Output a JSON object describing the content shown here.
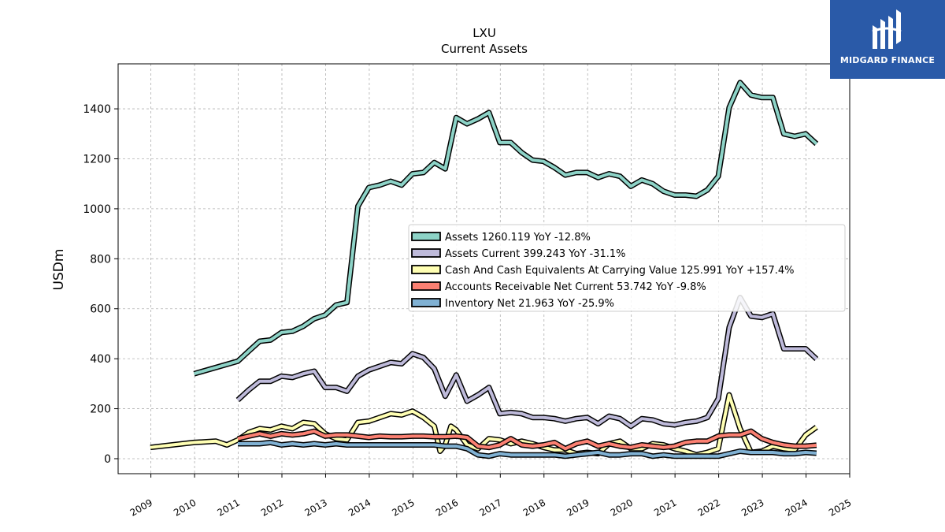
{
  "brand": {
    "name": "MIDGARD FINANCE",
    "color": "#2a5aa8"
  },
  "chart_data": {
    "type": "line",
    "title": "LXU",
    "subtitle": "Current  Assets",
    "xlabel": "",
    "ylabel": "USDm",
    "xlim": [
      2008.25,
      2025.0
    ],
    "ylim": [
      -60,
      1580
    ],
    "xticks": [
      2009,
      2010,
      2011,
      2012,
      2013,
      2014,
      2015,
      2016,
      2017,
      2018,
      2019,
      2020,
      2021,
      2022,
      2023,
      2024,
      2025
    ],
    "yticks": [
      0,
      200,
      400,
      600,
      800,
      1000,
      1200,
      1400
    ],
    "grid": true,
    "legend_position": "center-right",
    "series": [
      {
        "name": "Assets",
        "legend": "Assets  1260.119 YoY -12.8%",
        "color": "#8dd3c7",
        "points": [
          [
            2009.99,
            340
          ],
          [
            2010.99,
            390
          ],
          [
            2011.24,
            430
          ],
          [
            2011.49,
            470
          ],
          [
            2011.74,
            475
          ],
          [
            2011.99,
            505
          ],
          [
            2012.24,
            510
          ],
          [
            2012.49,
            530
          ],
          [
            2012.74,
            560
          ],
          [
            2012.99,
            575
          ],
          [
            2013.24,
            615
          ],
          [
            2013.49,
            625
          ],
          [
            2013.74,
            1010
          ],
          [
            2013.99,
            1085
          ],
          [
            2014.24,
            1095
          ],
          [
            2014.49,
            1110
          ],
          [
            2014.74,
            1095
          ],
          [
            2014.99,
            1140
          ],
          [
            2015.24,
            1145
          ],
          [
            2015.49,
            1185
          ],
          [
            2015.74,
            1160
          ],
          [
            2015.99,
            1365
          ],
          [
            2016.24,
            1340
          ],
          [
            2016.49,
            1360
          ],
          [
            2016.74,
            1385
          ],
          [
            2016.99,
            1265
          ],
          [
            2017.24,
            1265
          ],
          [
            2017.49,
            1225
          ],
          [
            2017.74,
            1195
          ],
          [
            2017.99,
            1190
          ],
          [
            2018.24,
            1165
          ],
          [
            2018.49,
            1135
          ],
          [
            2018.74,
            1145
          ],
          [
            2018.99,
            1145
          ],
          [
            2019.24,
            1125
          ],
          [
            2019.49,
            1140
          ],
          [
            2019.74,
            1130
          ],
          [
            2019.99,
            1090
          ],
          [
            2020.24,
            1115
          ],
          [
            2020.49,
            1100
          ],
          [
            2020.74,
            1070
          ],
          [
            2020.99,
            1055
          ],
          [
            2021.24,
            1055
          ],
          [
            2021.49,
            1050
          ],
          [
            2021.74,
            1075
          ],
          [
            2021.99,
            1130
          ],
          [
            2022.24,
            1405
          ],
          [
            2022.49,
            1505
          ],
          [
            2022.74,
            1455
          ],
          [
            2022.99,
            1445
          ],
          [
            2023.24,
            1445
          ],
          [
            2023.49,
            1300
          ],
          [
            2023.74,
            1290
          ],
          [
            2023.99,
            1300
          ],
          [
            2024.24,
            1260
          ]
        ]
      },
      {
        "name": "Assets Current",
        "legend": "Assets Current  399.243 YoY -31.1%",
        "color": "#bebada",
        "points": [
          [
            2010.99,
            235
          ],
          [
            2011.24,
            275
          ],
          [
            2011.49,
            310
          ],
          [
            2011.74,
            310
          ],
          [
            2011.99,
            330
          ],
          [
            2012.24,
            325
          ],
          [
            2012.49,
            340
          ],
          [
            2012.74,
            350
          ],
          [
            2012.99,
            285
          ],
          [
            2013.24,
            285
          ],
          [
            2013.49,
            270
          ],
          [
            2013.74,
            330
          ],
          [
            2013.99,
            355
          ],
          [
            2014.24,
            370
          ],
          [
            2014.49,
            385
          ],
          [
            2014.74,
            380
          ],
          [
            2014.99,
            420
          ],
          [
            2015.24,
            405
          ],
          [
            2015.49,
            360
          ],
          [
            2015.74,
            250
          ],
          [
            2015.99,
            335
          ],
          [
            2016.24,
            230
          ],
          [
            2016.49,
            255
          ],
          [
            2016.74,
            285
          ],
          [
            2016.99,
            180
          ],
          [
            2017.24,
            185
          ],
          [
            2017.49,
            180
          ],
          [
            2017.74,
            165
          ],
          [
            2017.99,
            165
          ],
          [
            2018.24,
            160
          ],
          [
            2018.49,
            150
          ],
          [
            2018.74,
            160
          ],
          [
            2018.99,
            165
          ],
          [
            2019.24,
            140
          ],
          [
            2019.49,
            170
          ],
          [
            2019.74,
            160
          ],
          [
            2019.99,
            130
          ],
          [
            2020.24,
            160
          ],
          [
            2020.49,
            155
          ],
          [
            2020.74,
            140
          ],
          [
            2020.99,
            135
          ],
          [
            2021.24,
            145
          ],
          [
            2021.49,
            150
          ],
          [
            2021.74,
            165
          ],
          [
            2021.99,
            240
          ],
          [
            2022.24,
            525
          ],
          [
            2022.49,
            645
          ],
          [
            2022.74,
            570
          ],
          [
            2022.99,
            565
          ],
          [
            2023.24,
            580
          ],
          [
            2023.49,
            440
          ],
          [
            2023.74,
            440
          ],
          [
            2023.99,
            440
          ],
          [
            2024.24,
            399
          ]
        ]
      },
      {
        "name": "Cash And Cash Equivalents At Carrying Value",
        "legend": "Cash And Cash Equivalents At Carrying Value  125.991 YoY +157.4%",
        "color": "#ffffb3",
        "points": [
          [
            2008.99,
            45
          ],
          [
            2009.49,
            55
          ],
          [
            2009.99,
            65
          ],
          [
            2010.49,
            70
          ],
          [
            2010.74,
            55
          ],
          [
            2010.99,
            75
          ],
          [
            2011.24,
            105
          ],
          [
            2011.49,
            120
          ],
          [
            2011.74,
            115
          ],
          [
            2011.99,
            130
          ],
          [
            2012.24,
            120
          ],
          [
            2012.49,
            145
          ],
          [
            2012.74,
            140
          ],
          [
            2012.99,
            100
          ],
          [
            2013.24,
            80
          ],
          [
            2013.49,
            75
          ],
          [
            2013.74,
            145
          ],
          [
            2013.99,
            150
          ],
          [
            2014.24,
            165
          ],
          [
            2014.49,
            180
          ],
          [
            2014.74,
            175
          ],
          [
            2014.99,
            190
          ],
          [
            2015.24,
            165
          ],
          [
            2015.49,
            130
          ],
          [
            2015.62,
            30
          ],
          [
            2015.74,
            55
          ],
          [
            2015.87,
            130
          ],
          [
            2015.99,
            115
          ],
          [
            2016.24,
            55
          ],
          [
            2016.49,
            40
          ],
          [
            2016.74,
            80
          ],
          [
            2016.99,
            75
          ],
          [
            2017.24,
            60
          ],
          [
            2017.49,
            70
          ],
          [
            2017.74,
            60
          ],
          [
            2017.99,
            45
          ],
          [
            2018.24,
            35
          ],
          [
            2018.49,
            35
          ],
          [
            2018.74,
            20
          ],
          [
            2018.99,
            25
          ],
          [
            2019.24,
            20
          ],
          [
            2019.49,
            60
          ],
          [
            2019.74,
            70
          ],
          [
            2019.99,
            40
          ],
          [
            2020.24,
            40
          ],
          [
            2020.49,
            60
          ],
          [
            2020.74,
            55
          ],
          [
            2020.99,
            40
          ],
          [
            2021.24,
            30
          ],
          [
            2021.49,
            15
          ],
          [
            2021.74,
            25
          ],
          [
            2021.99,
            40
          ],
          [
            2022.24,
            255
          ],
          [
            2022.49,
            120
          ],
          [
            2022.74,
            25
          ],
          [
            2022.99,
            30
          ],
          [
            2023.24,
            50
          ],
          [
            2023.49,
            40
          ],
          [
            2023.74,
            35
          ],
          [
            2023.99,
            95
          ],
          [
            2024.24,
            126
          ]
        ]
      },
      {
        "name": "Accounts Receivable Net Current",
        "legend": "Accounts Receivable Net Current  53.742 YoY -9.8%",
        "color": "#fb8072",
        "points": [
          [
            2010.99,
            80
          ],
          [
            2011.24,
            90
          ],
          [
            2011.49,
            100
          ],
          [
            2011.74,
            90
          ],
          [
            2011.99,
            100
          ],
          [
            2012.24,
            95
          ],
          [
            2012.49,
            100
          ],
          [
            2012.74,
            110
          ],
          [
            2012.99,
            90
          ],
          [
            2013.24,
            95
          ],
          [
            2013.49,
            95
          ],
          [
            2013.74,
            90
          ],
          [
            2013.99,
            85
          ],
          [
            2014.24,
            90
          ],
          [
            2014.49,
            88
          ],
          [
            2014.74,
            88
          ],
          [
            2014.99,
            90
          ],
          [
            2015.24,
            90
          ],
          [
            2015.49,
            88
          ],
          [
            2015.74,
            88
          ],
          [
            2015.99,
            90
          ],
          [
            2016.24,
            85
          ],
          [
            2016.49,
            50
          ],
          [
            2016.74,
            45
          ],
          [
            2016.99,
            55
          ],
          [
            2017.24,
            80
          ],
          [
            2017.49,
            55
          ],
          [
            2017.74,
            50
          ],
          [
            2017.99,
            55
          ],
          [
            2018.24,
            65
          ],
          [
            2018.49,
            40
          ],
          [
            2018.74,
            60
          ],
          [
            2018.99,
            70
          ],
          [
            2019.24,
            50
          ],
          [
            2019.49,
            60
          ],
          [
            2019.74,
            50
          ],
          [
            2019.99,
            45
          ],
          [
            2020.24,
            55
          ],
          [
            2020.49,
            50
          ],
          [
            2020.74,
            45
          ],
          [
            2020.99,
            50
          ],
          [
            2021.24,
            65
          ],
          [
            2021.49,
            70
          ],
          [
            2021.74,
            70
          ],
          [
            2021.99,
            90
          ],
          [
            2022.24,
            95
          ],
          [
            2022.49,
            95
          ],
          [
            2022.74,
            110
          ],
          [
            2022.99,
            80
          ],
          [
            2023.24,
            65
          ],
          [
            2023.49,
            55
          ],
          [
            2023.74,
            50
          ],
          [
            2023.99,
            50
          ],
          [
            2024.24,
            54
          ]
        ]
      },
      {
        "name": "Inventory Net",
        "legend": "Inventory Net  21.963 YoY -25.9%",
        "color": "#80b1d3",
        "points": [
          [
            2010.99,
            60
          ],
          [
            2011.24,
            60
          ],
          [
            2011.49,
            60
          ],
          [
            2011.74,
            65
          ],
          [
            2011.99,
            55
          ],
          [
            2012.24,
            60
          ],
          [
            2012.49,
            55
          ],
          [
            2012.74,
            60
          ],
          [
            2012.99,
            55
          ],
          [
            2013.24,
            60
          ],
          [
            2013.49,
            55
          ],
          [
            2013.74,
            55
          ],
          [
            2013.99,
            55
          ],
          [
            2014.24,
            55
          ],
          [
            2014.49,
            55
          ],
          [
            2014.74,
            55
          ],
          [
            2014.99,
            55
          ],
          [
            2015.24,
            55
          ],
          [
            2015.49,
            55
          ],
          [
            2015.74,
            50
          ],
          [
            2015.99,
            50
          ],
          [
            2016.24,
            40
          ],
          [
            2016.49,
            15
          ],
          [
            2016.74,
            10
          ],
          [
            2016.99,
            20
          ],
          [
            2017.24,
            15
          ],
          [
            2017.49,
            15
          ],
          [
            2017.74,
            15
          ],
          [
            2017.99,
            15
          ],
          [
            2018.24,
            15
          ],
          [
            2018.49,
            10
          ],
          [
            2018.74,
            15
          ],
          [
            2018.99,
            20
          ],
          [
            2019.24,
            25
          ],
          [
            2019.49,
            15
          ],
          [
            2019.74,
            15
          ],
          [
            2019.99,
            20
          ],
          [
            2020.24,
            20
          ],
          [
            2020.49,
            10
          ],
          [
            2020.74,
            15
          ],
          [
            2020.99,
            10
          ],
          [
            2021.24,
            10
          ],
          [
            2021.49,
            10
          ],
          [
            2021.74,
            10
          ],
          [
            2021.99,
            10
          ],
          [
            2022.24,
            20
          ],
          [
            2022.49,
            30
          ],
          [
            2022.74,
            25
          ],
          [
            2022.99,
            25
          ],
          [
            2023.24,
            25
          ],
          [
            2023.49,
            20
          ],
          [
            2023.74,
            20
          ],
          [
            2023.99,
            25
          ],
          [
            2024.24,
            22
          ]
        ]
      }
    ]
  }
}
